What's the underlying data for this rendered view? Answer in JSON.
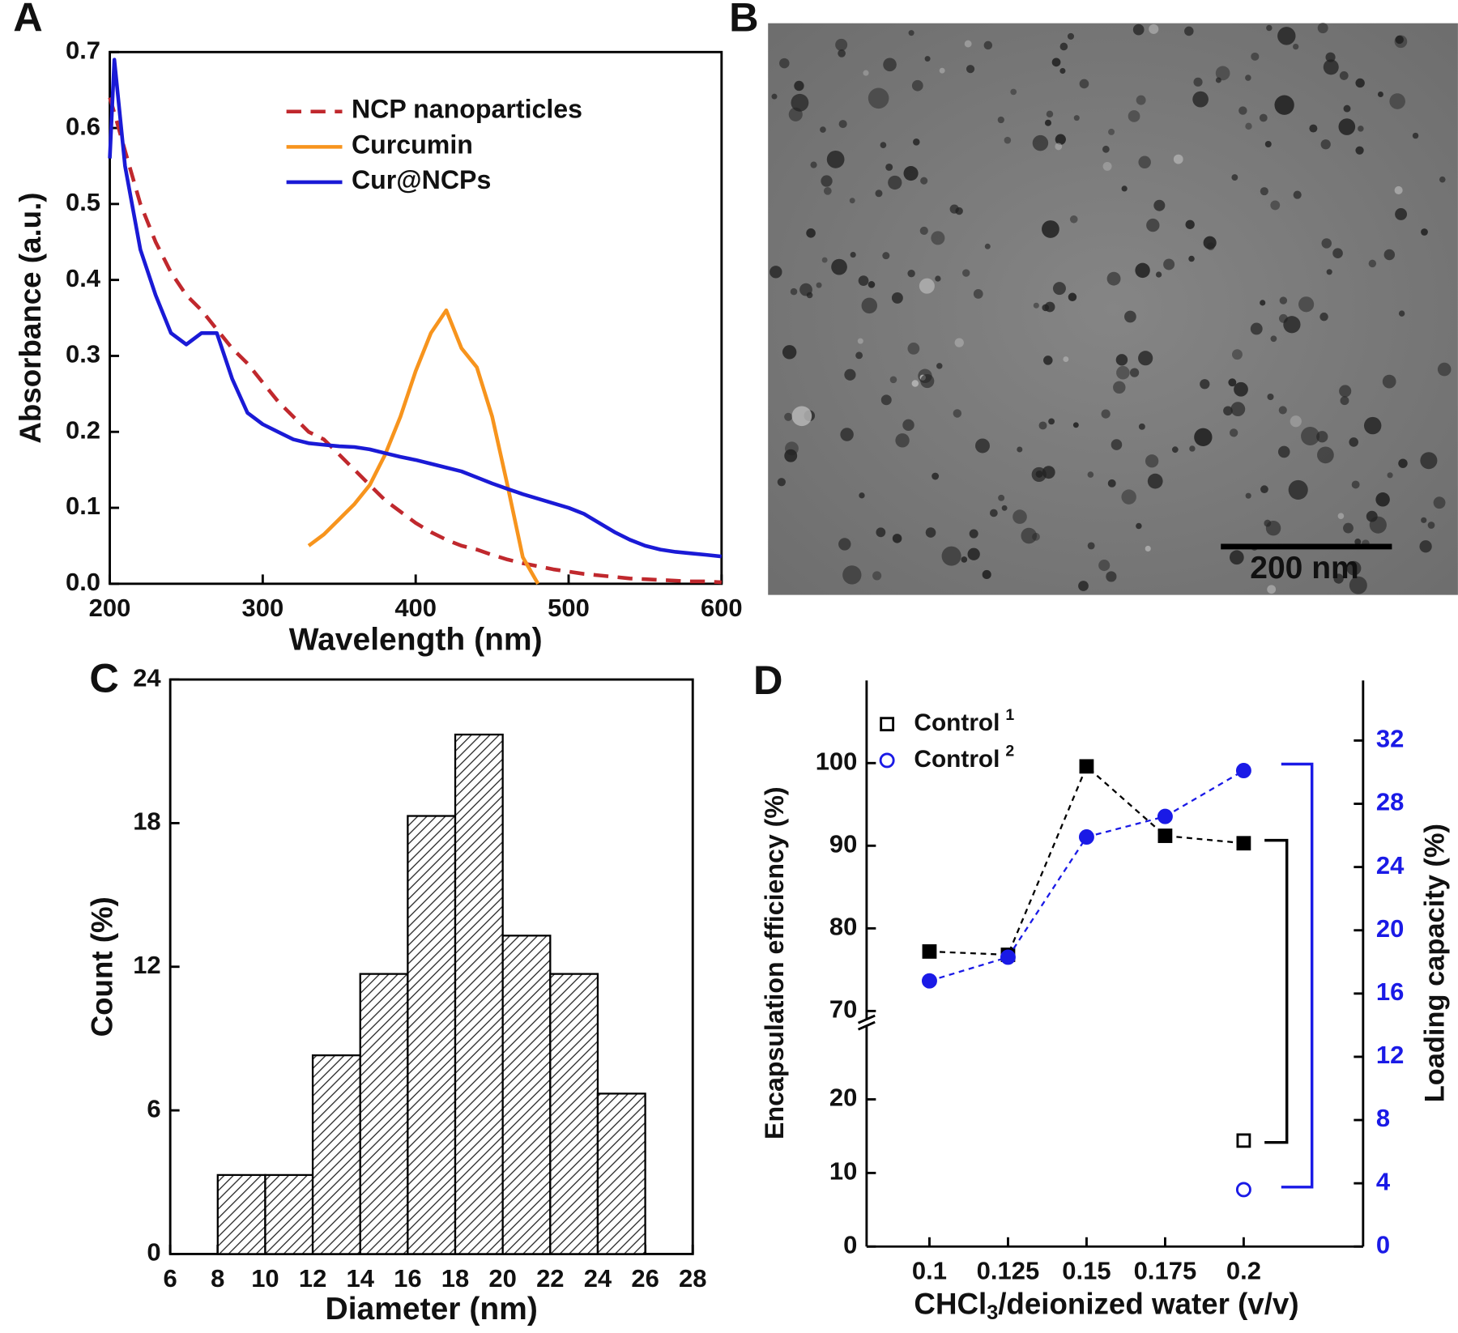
{
  "chart_data": [
    {
      "panel": "A",
      "type": "line",
      "xlabel": "Wavelength (nm)",
      "ylabel": "Absorbance (a.u.)",
      "legend": "upper right",
      "x": [
        200,
        203,
        210,
        220,
        230,
        240,
        250,
        260,
        270,
        280,
        290,
        300,
        310,
        320,
        330,
        340,
        350,
        360,
        370,
        380,
        390,
        400,
        410,
        420,
        430,
        440,
        450,
        460,
        470,
        480,
        490,
        500,
        510,
        520,
        530,
        540,
        550,
        560,
        570,
        580,
        590,
        600
      ],
      "xlim": [
        200,
        600
      ],
      "xticks": [
        200,
        300,
        400,
        500,
        600
      ],
      "ylim": [
        0,
        0.7
      ],
      "yticks": [
        {
          "value": 0,
          "label": "0.0"
        },
        0.1,
        0.2,
        0.3,
        0.4,
        0.5,
        0.6,
        0.7
      ],
      "series": [
        {
          "name": "NCP nanoparticles",
          "color": "#c0282d",
          "dash": true,
          "values": [
            0.64,
            0.62,
            0.57,
            0.5,
            0.45,
            0.41,
            0.38,
            0.36,
            0.335,
            0.31,
            0.29,
            0.265,
            0.24,
            0.22,
            0.2,
            0.19,
            0.17,
            0.15,
            0.13,
            0.11,
            0.095,
            0.08,
            0.068,
            0.058,
            0.05,
            0.045,
            0.038,
            0.032,
            0.027,
            0.023,
            0.019,
            0.016,
            0.013,
            0.011,
            0.009,
            0.007,
            0.006,
            0.005,
            0.004,
            0.003,
            0.003,
            0.002
          ]
        },
        {
          "name": "Curcumin",
          "color": "#f7941d",
          "values": [
            null,
            null,
            null,
            null,
            null,
            null,
            null,
            null,
            null,
            null,
            null,
            null,
            null,
            null,
            0.05,
            0.065,
            0.085,
            0.105,
            0.13,
            0.17,
            0.22,
            0.28,
            0.33,
            0.36,
            0.31,
            0.285,
            0.22,
            0.13,
            0.035,
            0,
            null,
            null,
            null,
            null,
            null,
            null,
            null,
            null,
            null,
            null,
            null,
            null
          ]
        },
        {
          "name": "Cur@NCPs",
          "color": "#1a1ad6",
          "values": [
            0.56,
            0.69,
            0.55,
            0.44,
            0.38,
            0.33,
            0.315,
            0.33,
            0.33,
            0.27,
            0.225,
            0.21,
            0.2,
            0.19,
            0.185,
            0.183,
            0.181,
            0.18,
            0.177,
            0.172,
            0.167,
            0.163,
            0.158,
            0.153,
            0.148,
            0.14,
            0.132,
            0.125,
            0.118,
            0.112,
            0.106,
            0.1,
            0.092,
            0.08,
            0.068,
            0.058,
            0.05,
            0.045,
            0.042,
            0.04,
            0.038,
            0.036
          ]
        }
      ]
    },
    {
      "panel": "C",
      "type": "histogram",
      "xlabel": "Diameter (nm)",
      "ylabel": "Count (%)",
      "hatch": true,
      "bins": [
        8,
        10,
        12,
        14,
        16,
        18,
        20,
        22,
        24,
        26
      ],
      "values": [
        3.3,
        3.3,
        8.3,
        11.7,
        18.3,
        21.7,
        13.3,
        11.7,
        6.7
      ],
      "xlim": [
        6,
        28
      ],
      "xticks": [
        6,
        8,
        10,
        12,
        14,
        16,
        18,
        20,
        22,
        24,
        26,
        28
      ],
      "ylim": [
        0,
        24
      ],
      "yticks": [
        0,
        6,
        12,
        18,
        24
      ]
    },
    {
      "panel": "D",
      "type": "line",
      "markers": true,
      "legend": "upper left",
      "xlabel": [
        "CHCl",
        "3",
        "/deionized water (v/v)"
      ],
      "ylabel": "Encapsulation efficiency (%)",
      "y2label": "Loading capacity (%)",
      "x": [
        0.1,
        0.125,
        0.15,
        0.175,
        0.2
      ],
      "xlim": [
        0.08,
        0.238
      ],
      "xticks": [
        0.1,
        0.125,
        0.15,
        0.175,
        0.2
      ],
      "ylim": [
        0,
        110
      ],
      "ybreak": [
        30,
        69
      ],
      "yticks": [
        0,
        10,
        20,
        70,
        80,
        90,
        100
      ],
      "y2lim": [
        0,
        35.8
      ],
      "y2ticks": [
        0,
        4,
        8,
        12,
        16,
        20,
        24,
        28,
        32
      ],
      "y2color": "#1a1ae6",
      "series": [
        {
          "color": "#000000",
          "marker": "square",
          "fill": true,
          "line": "dashed",
          "values": [
            77.2,
            76.8,
            99.6,
            91.2,
            90.3
          ]
        },
        {
          "axis": "y2",
          "color": "#1a1ae6",
          "marker": "circle",
          "fill": true,
          "line": "dashed",
          "values": [
            16.8,
            18.3,
            25.9,
            27.2,
            30.1
          ]
        },
        {
          "name": "Control",
          "superscript": "1",
          "color": "#000000",
          "marker": "square",
          "fill": false,
          "values": [
            null,
            null,
            null,
            null,
            14.4
          ]
        },
        {
          "name": "Control",
          "superscript": "2",
          "axis": "y2",
          "color": "#1a1ae6",
          "marker": "circle",
          "fill": false,
          "values": [
            null,
            null,
            null,
            null,
            3.6
          ]
        }
      ]
    }
  ],
  "image_panel": {
    "panel": "B",
    "scale_bar": "200 nm"
  }
}
